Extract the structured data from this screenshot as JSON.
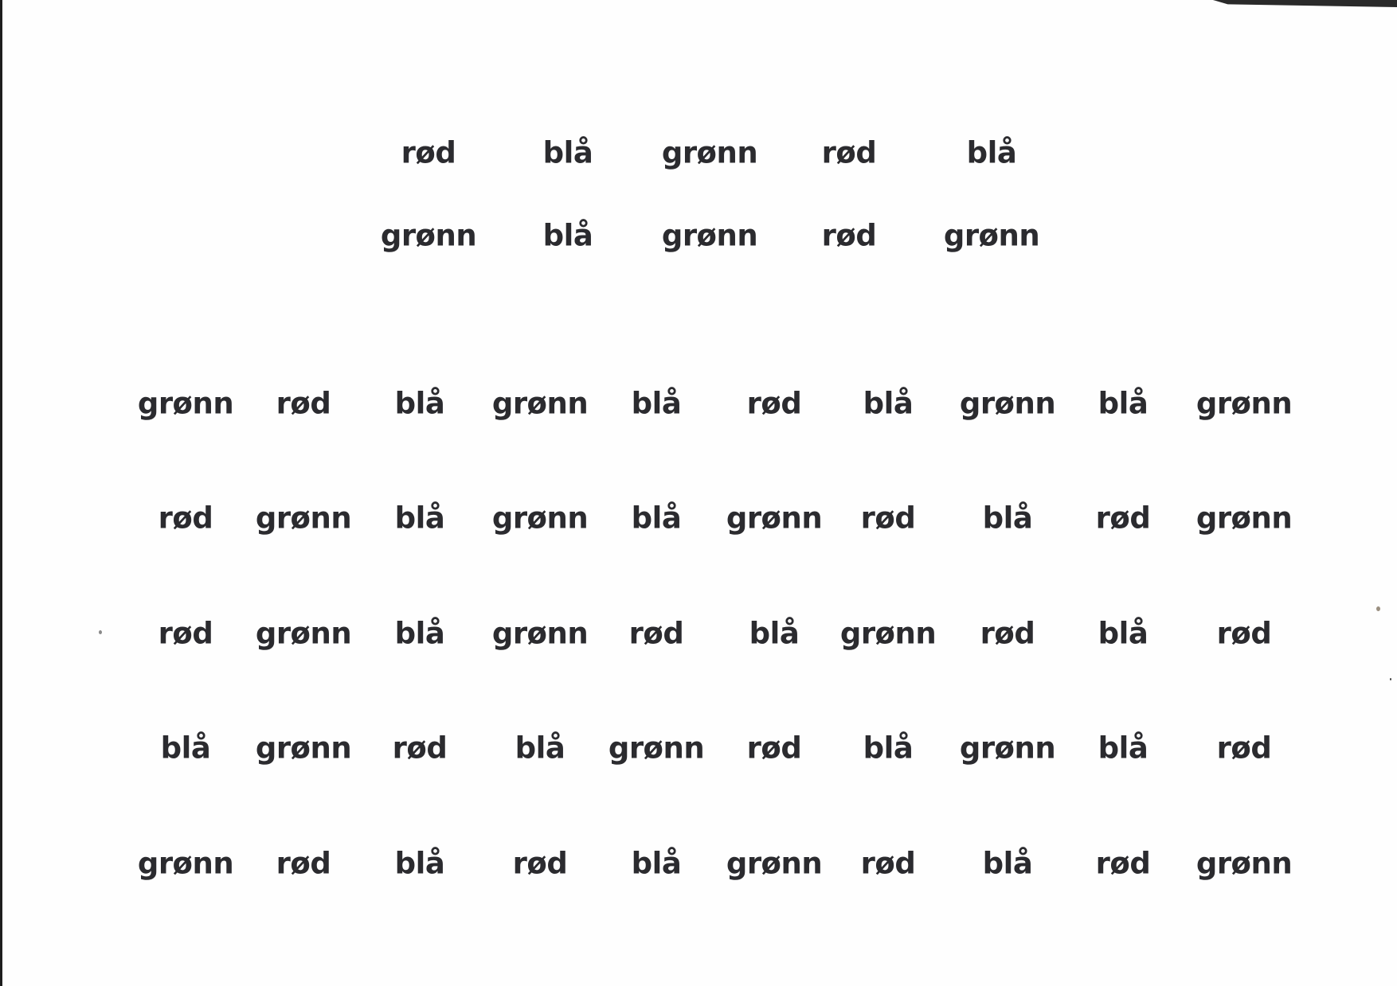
{
  "stroop_sheet": {
    "section_1": [
      [
        "rød",
        "blå",
        "grønn",
        "rød",
        "blå"
      ],
      [
        "grønn",
        "blå",
        "grønn",
        "rød",
        "grønn"
      ]
    ],
    "section_2": [
      [
        "grønn",
        "rød",
        "blå",
        "grønn",
        "blå",
        "rød",
        "blå",
        "grønn",
        "blå",
        "grønn"
      ],
      [
        "rød",
        "grønn",
        "blå",
        "grønn",
        "blå",
        "grønn",
        "rød",
        "blå",
        "rød",
        "grønn"
      ],
      [
        "rød",
        "grønn",
        "blå",
        "grønn",
        "rød",
        "blå",
        "grønn",
        "rød",
        "blå",
        "rød"
      ],
      [
        "blå",
        "grønn",
        "rød",
        "blå",
        "grønn",
        "rød",
        "blå",
        "grønn",
        "blå",
        "rød"
      ],
      [
        "grønn",
        "rød",
        "blå",
        "rød",
        "blå",
        "grønn",
        "rød",
        "blå",
        "rød",
        "grønn"
      ]
    ],
    "colors": {
      "ink": "#2b2b2f",
      "paper": "#fefefe"
    }
  }
}
